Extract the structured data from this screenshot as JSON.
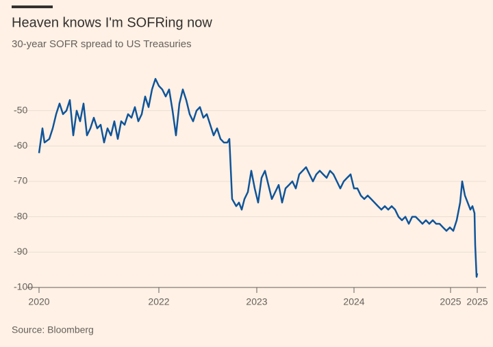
{
  "chart_data": {
    "type": "line",
    "title": "Heaven knows I'm SOFRing now",
    "subtitle": "30-year SOFR spread to US Treasuries",
    "source": "Source: Bloomberg",
    "xlim": [
      0,
      640
    ],
    "ylim": [
      -100,
      -40
    ],
    "yticks": [
      -100,
      -90,
      -80,
      -70,
      -60,
      -50
    ],
    "xticks": [
      {
        "value": 0,
        "label": "2020"
      },
      {
        "value": 175,
        "label": "2022"
      },
      {
        "value": 318,
        "label": "2023"
      },
      {
        "value": 460,
        "label": "2024"
      },
      {
        "value": 601,
        "label": "2025"
      },
      {
        "value": 640,
        "label": "2025"
      }
    ],
    "grid": true,
    "x": [
      0,
      5,
      8,
      15,
      20,
      25,
      30,
      35,
      40,
      45,
      50,
      55,
      60,
      65,
      70,
      75,
      80,
      85,
      90,
      95,
      100,
      105,
      110,
      115,
      120,
      125,
      130,
      135,
      140,
      145,
      150,
      155,
      160,
      165,
      170,
      175,
      180,
      185,
      190,
      195,
      200,
      205,
      210,
      215,
      220,
      225,
      230,
      235,
      240,
      245,
      250,
      255,
      260,
      265,
      270,
      275,
      278,
      282,
      288,
      292,
      296,
      300,
      305,
      310,
      315,
      320,
      325,
      330,
      335,
      340,
      345,
      350,
      355,
      360,
      365,
      370,
      375,
      380,
      385,
      390,
      395,
      400,
      405,
      410,
      415,
      420,
      425,
      430,
      435,
      440,
      445,
      450,
      455,
      460,
      465,
      470,
      475,
      480,
      485,
      490,
      495,
      500,
      505,
      510,
      515,
      520,
      525,
      530,
      535,
      540,
      545,
      550,
      555,
      560,
      565,
      570,
      575,
      580,
      585,
      590,
      595,
      600,
      605,
      610,
      615,
      618,
      622,
      626,
      630,
      633,
      636,
      637,
      639,
      640
    ],
    "series": [
      {
        "name": "30-year SOFR spread",
        "color": "#0f5499",
        "values": [
          -62,
          -55,
          -59,
          -58,
          -55,
          -51,
          -48,
          -51,
          -50,
          -47,
          -57,
          -50,
          -53,
          -48,
          -57,
          -55,
          -52,
          -55,
          -54,
          -59,
          -55,
          -57,
          -53,
          -58,
          -53,
          -54,
          -51,
          -52,
          -49,
          -53,
          -51,
          -46,
          -49,
          -44,
          -41,
          -43,
          -44,
          -46,
          -44,
          -50,
          -57,
          -48,
          -44,
          -47,
          -51,
          -53,
          -50,
          -49,
          -52,
          -51,
          -54,
          -57,
          -55,
          -58,
          -59,
          -59,
          -58,
          -75,
          -77,
          -76,
          -78,
          -75,
          -73,
          -67,
          -72,
          -76,
          -69,
          -67,
          -71,
          -75,
          -73,
          -71,
          -76,
          -72,
          -71,
          -70,
          -72,
          -68,
          -67,
          -66,
          -68,
          -70,
          -68,
          -67,
          -68,
          -69,
          -67,
          -68,
          -70,
          -72,
          -70,
          -69,
          -68,
          -72,
          -72,
          -74,
          -75,
          -74,
          -75,
          -76,
          -77,
          -78,
          -77,
          -78,
          -77,
          -78,
          -80,
          -81,
          -80,
          -82,
          -80,
          -80,
          -81,
          -82,
          -81,
          -82,
          -81,
          -82,
          -82,
          -83,
          -84,
          -83,
          -84,
          -81,
          -76,
          -70,
          -74,
          -76,
          -78,
          -77,
          -79,
          -88,
          -97,
          -96
        ]
      }
    ]
  }
}
